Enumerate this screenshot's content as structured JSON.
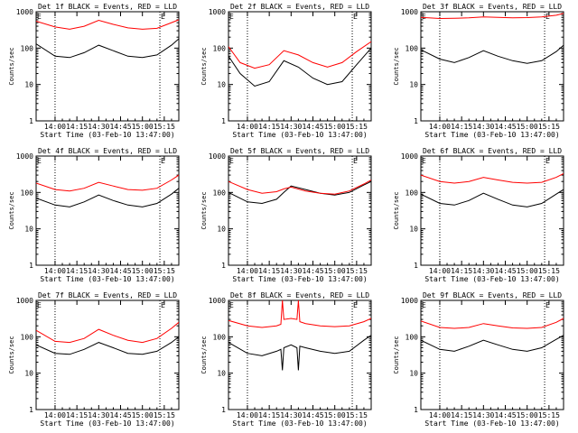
{
  "chart_data": [
    {
      "type": "line",
      "title": "Det 1f BLACK = Events, RED = LLD",
      "ylabel": "Counts/sec",
      "xlabel": "Start Time (03-Feb-10 13:47:00)",
      "x_ticks": [
        "14:00",
        "14:15",
        "14:30",
        "14:45",
        "15:00",
        "15:15"
      ],
      "y_ticks": [
        "1",
        "10",
        "100",
        "1000"
      ],
      "yscale": "log",
      "ylim": [
        1,
        1000
      ],
      "xlim": [
        "13:47",
        "15:25"
      ],
      "markers": [
        "E",
        "E"
      ],
      "marker_times": [
        "13:47",
        "15:12"
      ],
      "dotted_lines": [
        "14:00",
        "15:12"
      ],
      "series": [
        {
          "color": "#000000",
          "x": [
            "13:47",
            "14:00",
            "14:10",
            "14:20",
            "14:30",
            "14:40",
            "14:50",
            "15:00",
            "15:10",
            "15:20",
            "15:25"
          ],
          "y": [
            130,
            60,
            55,
            75,
            120,
            85,
            60,
            55,
            65,
            120,
            180
          ]
        },
        {
          "color": "#ff0000",
          "x": [
            "13:47",
            "14:00",
            "14:10",
            "14:20",
            "14:30",
            "14:40",
            "14:50",
            "15:00",
            "15:10",
            "15:20",
            "15:25"
          ],
          "y": [
            550,
            380,
            330,
            400,
            580,
            450,
            360,
            330,
            350,
            500,
            600
          ]
        }
      ]
    },
    {
      "type": "line",
      "title": "Det 2f BLACK = Events, RED = LLD",
      "ylabel": "Counts/sec",
      "xlabel": "Start Time (03-Feb-10 13:47:00)",
      "x_ticks": [
        "14:00",
        "14:15",
        "14:30",
        "14:45",
        "15:00",
        "15:15"
      ],
      "y_ticks": [
        "1",
        "10",
        "100",
        "1000"
      ],
      "yscale": "log",
      "ylim": [
        1,
        1000
      ],
      "xlim": [
        "13:47",
        "15:25"
      ],
      "markers": [
        "E",
        "E"
      ],
      "marker_times": [
        "13:47",
        "15:12"
      ],
      "dotted_lines": [
        "14:00",
        "15:12"
      ],
      "series": [
        {
          "color": "#000000",
          "x": [
            "13:47",
            "13:55",
            "14:05",
            "14:15",
            "14:25",
            "14:35",
            "14:45",
            "14:55",
            "15:05",
            "15:15",
            "15:25"
          ],
          "y": [
            60,
            20,
            9,
            12,
            45,
            30,
            15,
            10,
            12,
            35,
            100
          ]
        },
        {
          "color": "#ff0000",
          "x": [
            "13:47",
            "13:55",
            "14:05",
            "14:15",
            "14:25",
            "14:35",
            "14:45",
            "14:55",
            "15:05",
            "15:15",
            "15:25"
          ],
          "y": [
            110,
            40,
            28,
            35,
            85,
            65,
            40,
            30,
            40,
            80,
            150
          ]
        }
      ]
    },
    {
      "type": "line",
      "title": "Det 3f BLACK = Events, RED = LLD",
      "ylabel": "Counts/sec",
      "xlabel": "Start Time (03-Feb-10 13:47:00)",
      "x_ticks": [
        "14:00",
        "14:15",
        "14:30",
        "14:45",
        "15:00",
        "15:15"
      ],
      "y_ticks": [
        "1",
        "10",
        "100",
        "1000"
      ],
      "yscale": "log",
      "ylim": [
        1,
        1000
      ],
      "xlim": [
        "13:47",
        "15:25"
      ],
      "markers": [
        "E",
        "E"
      ],
      "marker_times": [
        "13:47",
        "15:12"
      ],
      "dotted_lines": [
        "14:00",
        "15:12"
      ],
      "series": [
        {
          "color": "#000000",
          "x": [
            "13:47",
            "14:00",
            "14:10",
            "14:20",
            "14:30",
            "14:40",
            "14:50",
            "15:00",
            "15:10",
            "15:20",
            "15:25"
          ],
          "y": [
            90,
            50,
            40,
            55,
            85,
            60,
            45,
            38,
            45,
            80,
            120
          ]
        },
        {
          "color": "#ff0000",
          "x": [
            "13:47",
            "14:00",
            "14:10",
            "14:20",
            "14:30",
            "14:40",
            "14:50",
            "15:00",
            "15:10",
            "15:20",
            "15:25"
          ],
          "y": [
            700,
            650,
            660,
            680,
            720,
            700,
            680,
            690,
            720,
            800,
            900
          ]
        }
      ]
    },
    {
      "type": "line",
      "title": "Det 4f BLACK = Events, RED = LLD",
      "ylabel": "Counts/sec",
      "xlabel": "Start Time (03-Feb-10 13:47:00)",
      "x_ticks": [
        "14:00",
        "14:15",
        "14:30",
        "14:45",
        "15:00",
        "15:15"
      ],
      "y_ticks": [
        "1",
        "10",
        "100",
        "1000"
      ],
      "yscale": "log",
      "ylim": [
        1,
        1000
      ],
      "xlim": [
        "13:47",
        "15:25"
      ],
      "markers": [
        "E",
        "E"
      ],
      "marker_times": [
        "13:47",
        "15:12"
      ],
      "dotted_lines": [
        "14:00",
        "15:12"
      ],
      "series": [
        {
          "color": "#000000",
          "x": [
            "13:47",
            "14:00",
            "14:10",
            "14:20",
            "14:30",
            "14:40",
            "14:50",
            "15:00",
            "15:10",
            "15:20",
            "15:25"
          ],
          "y": [
            70,
            45,
            40,
            55,
            85,
            60,
            45,
            40,
            50,
            90,
            130
          ]
        },
        {
          "color": "#ff0000",
          "x": [
            "13:47",
            "14:00",
            "14:10",
            "14:20",
            "14:30",
            "14:40",
            "14:50",
            "15:00",
            "15:10",
            "15:20",
            "15:25"
          ],
          "y": [
            180,
            120,
            110,
            130,
            190,
            150,
            120,
            115,
            130,
            220,
            300
          ]
        }
      ]
    },
    {
      "type": "line",
      "title": "Det 5f BLACK = Events, RED = LLD",
      "ylabel": "Counts/sec",
      "xlabel": "Start Time (03-Feb-10 13:47:00)",
      "x_ticks": [
        "14:00",
        "14:15",
        "14:30",
        "14:45",
        "15:00",
        "15:15"
      ],
      "y_ticks": [
        "1",
        "10",
        "100",
        "1000"
      ],
      "yscale": "log",
      "ylim": [
        1,
        1000
      ],
      "xlim": [
        "13:47",
        "15:25"
      ],
      "markers": [
        "E",
        "E"
      ],
      "marker_times": [
        "13:47",
        "15:12"
      ],
      "dotted_lines": [
        "14:00",
        "15:12"
      ],
      "series": [
        {
          "color": "#000000",
          "x": [
            "13:47",
            "14:00",
            "14:10",
            "14:20",
            "14:25",
            "14:30",
            "14:40",
            "14:50",
            "15:00",
            "15:10",
            "15:20",
            "15:25"
          ],
          "y": [
            100,
            55,
            50,
            65,
            100,
            150,
            120,
            95,
            85,
            100,
            160,
            200
          ]
        },
        {
          "color": "#ff0000",
          "x": [
            "13:47",
            "14:00",
            "14:10",
            "14:20",
            "14:25",
            "14:30",
            "14:40",
            "14:50",
            "15:00",
            "15:10",
            "15:20",
            "15:25"
          ],
          "y": [
            200,
            120,
            95,
            105,
            125,
            140,
            110,
            95,
            90,
            110,
            170,
            220
          ]
        }
      ]
    },
    {
      "type": "line",
      "title": "Det 6f BLACK = Events, RED = LLD",
      "ylabel": "Counts/sec",
      "xlabel": "Start Time (03-Feb-10 13:47:00)",
      "x_ticks": [
        "14:00",
        "14:15",
        "14:30",
        "14:45",
        "15:00",
        "15:15"
      ],
      "y_ticks": [
        "1",
        "10",
        "100",
        "1000"
      ],
      "yscale": "log",
      "ylim": [
        1,
        1000
      ],
      "xlim": [
        "13:47",
        "15:25"
      ],
      "markers": [
        "E",
        "E"
      ],
      "marker_times": [
        "13:47",
        "15:12"
      ],
      "dotted_lines": [
        "14:00",
        "15:12"
      ],
      "series": [
        {
          "color": "#000000",
          "x": [
            "13:47",
            "14:00",
            "14:10",
            "14:20",
            "14:30",
            "14:40",
            "14:50",
            "15:00",
            "15:10",
            "15:20",
            "15:25"
          ],
          "y": [
            90,
            50,
            45,
            60,
            95,
            65,
            45,
            40,
            50,
            90,
            120
          ]
        },
        {
          "color": "#ff0000",
          "x": [
            "13:47",
            "14:00",
            "14:10",
            "14:20",
            "14:30",
            "14:40",
            "14:50",
            "15:00",
            "15:10",
            "15:20",
            "15:25"
          ],
          "y": [
            300,
            200,
            180,
            200,
            260,
            220,
            190,
            180,
            190,
            260,
            330
          ]
        }
      ]
    },
    {
      "type": "line",
      "title": "Det 7f BLACK = Events, RED = LLD",
      "ylabel": "Counts/sec",
      "xlabel": "Start Time (03-Feb-10 13:47:00)",
      "x_ticks": [
        "14:00",
        "14:15",
        "14:30",
        "14:45",
        "15:00",
        "15:15"
      ],
      "y_ticks": [
        "1",
        "10",
        "100",
        "1000"
      ],
      "yscale": "log",
      "ylim": [
        1,
        1000
      ],
      "xlim": [
        "13:47",
        "15:25"
      ],
      "markers": [
        "E",
        "E"
      ],
      "marker_times": [
        "13:47",
        "15:12"
      ],
      "dotted_lines": [
        "14:00",
        "15:12"
      ],
      "series": [
        {
          "color": "#000000",
          "x": [
            "13:47",
            "14:00",
            "14:10",
            "14:20",
            "14:30",
            "14:40",
            "14:50",
            "15:00",
            "15:10",
            "15:20",
            "15:25"
          ],
          "y": [
            60,
            35,
            33,
            45,
            70,
            50,
            35,
            33,
            40,
            70,
            100
          ]
        },
        {
          "color": "#ff0000",
          "x": [
            "13:47",
            "14:00",
            "14:10",
            "14:20",
            "14:30",
            "14:40",
            "14:50",
            "15:00",
            "15:10",
            "15:20",
            "15:25"
          ],
          "y": [
            150,
            75,
            70,
            90,
            160,
            110,
            80,
            70,
            90,
            170,
            250
          ]
        }
      ]
    },
    {
      "type": "line",
      "title": "Det 8f BLACK = Events, RED = LLD",
      "ylabel": "Counts/sec",
      "xlabel": "Start Time (03-Feb-10 13:47:00)",
      "x_ticks": [
        "14:00",
        "14:15",
        "14:30",
        "14:45",
        "15:00",
        "15:15"
      ],
      "y_ticks": [
        "1",
        "10",
        "100",
        "1000"
      ],
      "yscale": "log",
      "ylim": [
        1,
        1000
      ],
      "xlim": [
        "13:47",
        "15:25"
      ],
      "markers": [
        "E",
        "E"
      ],
      "marker_times": [
        "13:47",
        "15:12"
      ],
      "dotted_lines": [
        "14:00",
        "15:12"
      ],
      "series": [
        {
          "color": "#000000",
          "x": [
            "13:47",
            "14:00",
            "14:10",
            "14:20",
            "14:23",
            "14:24",
            "14:25",
            "14:30",
            "14:34",
            "14:35",
            "14:36",
            "14:40",
            "14:50",
            "15:00",
            "15:10",
            "15:20",
            "15:25"
          ],
          "y": [
            70,
            35,
            30,
            40,
            45,
            12,
            50,
            60,
            50,
            12,
            55,
            50,
            40,
            35,
            40,
            80,
            110
          ]
        },
        {
          "color": "#ff0000",
          "x": [
            "13:47",
            "14:00",
            "14:10",
            "14:20",
            "14:23",
            "14:24",
            "14:25",
            "14:30",
            "14:34",
            "14:35",
            "14:36",
            "14:40",
            "14:50",
            "15:00",
            "15:10",
            "15:20",
            "15:25"
          ],
          "y": [
            280,
            200,
            180,
            200,
            220,
            1000,
            300,
            320,
            300,
            1000,
            260,
            230,
            200,
            190,
            200,
            260,
            320
          ]
        }
      ]
    },
    {
      "type": "line",
      "title": "Det 9f BLACK = Events, RED = LLD",
      "ylabel": "Counts/sec",
      "xlabel": "Start Time (03-Feb-10 13:47:00)",
      "x_ticks": [
        "14:00",
        "14:15",
        "14:30",
        "14:45",
        "15:00",
        "15:15"
      ],
      "y_ticks": [
        "1",
        "10",
        "100",
        "1000"
      ],
      "yscale": "log",
      "ylim": [
        1,
        1000
      ],
      "xlim": [
        "13:47",
        "15:25"
      ],
      "markers": [
        "E",
        "E"
      ],
      "marker_times": [
        "13:47",
        "15:12"
      ],
      "dotted_lines": [
        "14:00",
        "15:12"
      ],
      "series": [
        {
          "color": "#000000",
          "x": [
            "13:47",
            "14:00",
            "14:10",
            "14:20",
            "14:30",
            "14:40",
            "14:50",
            "15:00",
            "15:10",
            "15:20",
            "15:25"
          ],
          "y": [
            80,
            45,
            40,
            55,
            80,
            60,
            45,
            40,
            50,
            85,
            110
          ]
        },
        {
          "color": "#ff0000",
          "x": [
            "13:47",
            "14:00",
            "14:10",
            "14:20",
            "14:30",
            "14:40",
            "14:50",
            "15:00",
            "15:10",
            "15:20",
            "15:25"
          ],
          "y": [
            270,
            180,
            170,
            180,
            230,
            200,
            175,
            170,
            180,
            250,
            320
          ]
        }
      ]
    }
  ]
}
